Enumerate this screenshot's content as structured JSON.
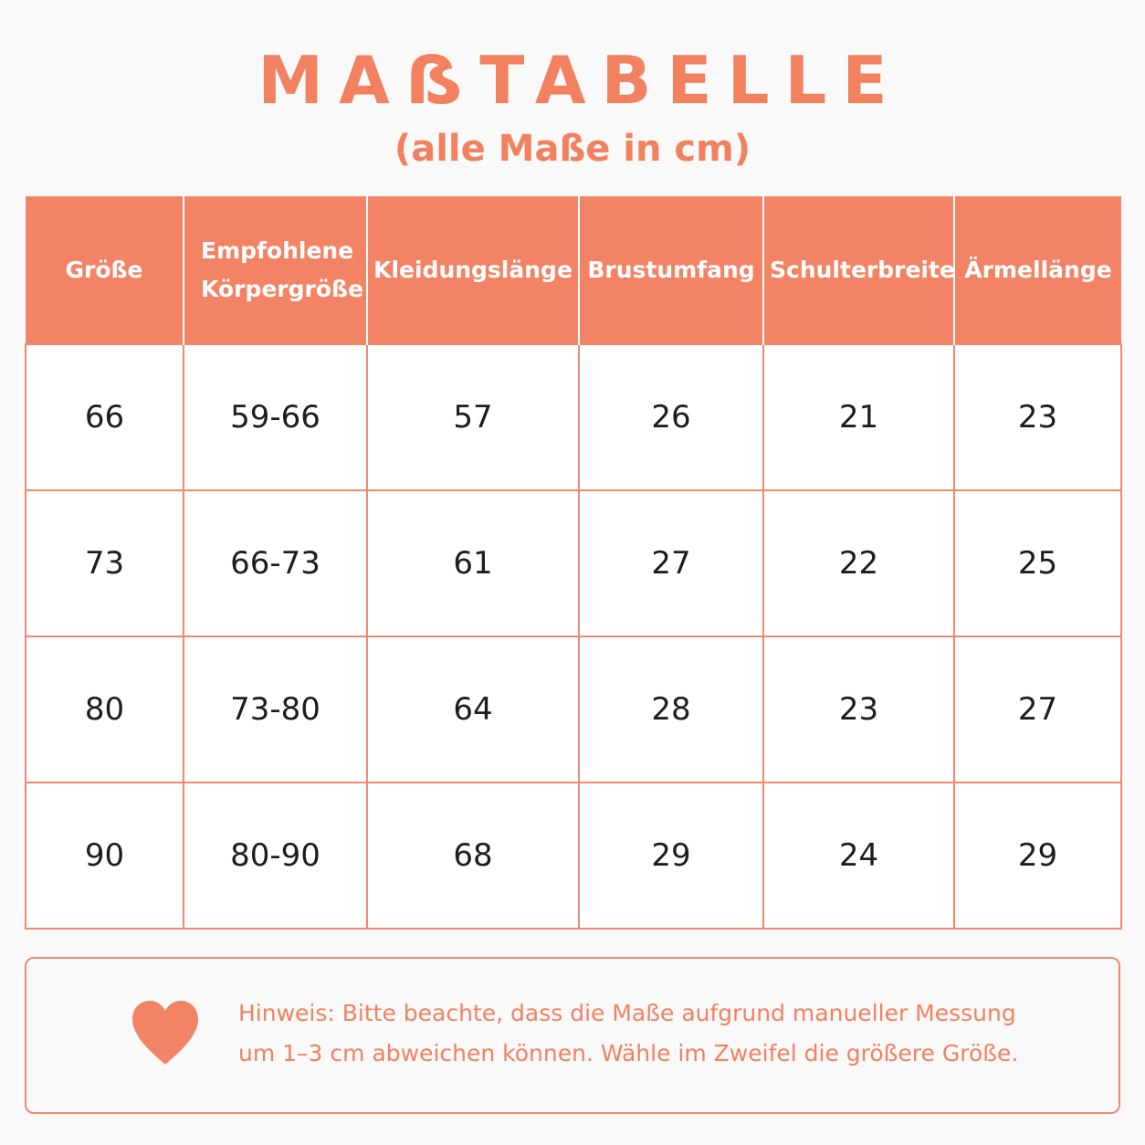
{
  "title": "MAẞTABELLE",
  "subtitle": "(alle Maße in cm)",
  "table": {
    "headers": [
      "Größe",
      "Empfohlene Körpergröße",
      "Kleidungslänge",
      "Brustumfang",
      "Schulterbreite",
      "Ärmellänge"
    ],
    "rows": [
      [
        "66",
        "59-66",
        "57",
        "26",
        "21",
        "23"
      ],
      [
        "73",
        "66-73",
        "61",
        "27",
        "22",
        "25"
      ],
      [
        "80",
        "73-80",
        "64",
        "28",
        "23",
        "27"
      ],
      [
        "90",
        "80-90",
        "68",
        "29",
        "24",
        "29"
      ]
    ]
  },
  "note": {
    "icon": "heart-icon",
    "line1": "Hinweis: Bitte beachte, dass die Maße aufgrund manueller Messung",
    "line2": "um 1–3 cm abweichen können. Wähle im Zweifel die größere Größe."
  },
  "colors": {
    "accent": "#f28465",
    "text": "#1d1d1d",
    "background": "#faf9f9"
  }
}
